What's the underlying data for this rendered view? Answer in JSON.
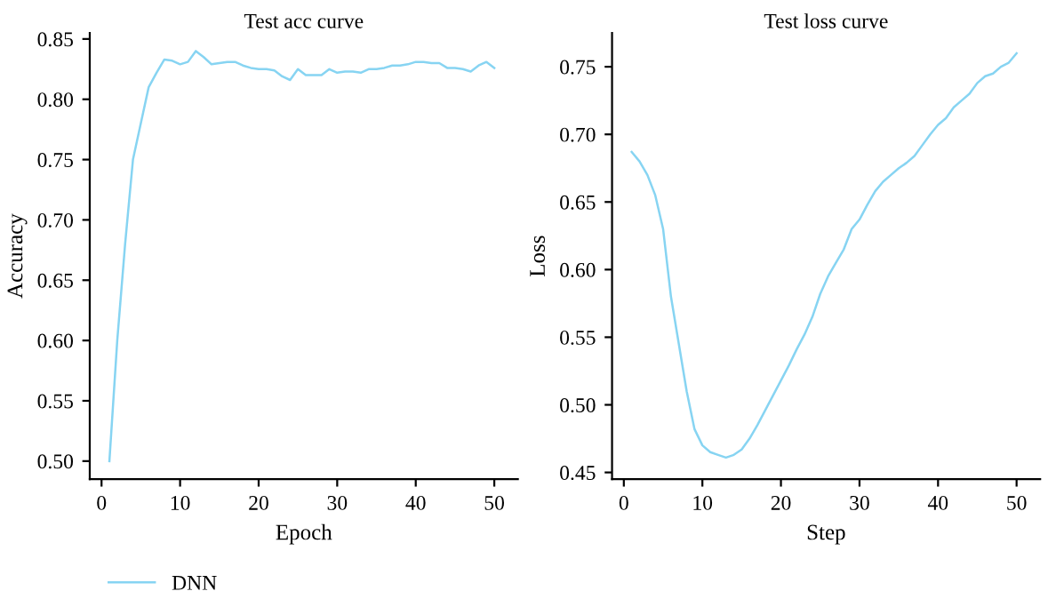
{
  "chart_data": [
    {
      "type": "line",
      "title": "Test acc curve",
      "xlabel": "Epoch",
      "ylabel": "Accuracy",
      "xlim": [
        -1.5,
        53
      ],
      "xticks": [
        0,
        10,
        20,
        30,
        40,
        50
      ],
      "ylim": [
        0.485,
        0.855
      ],
      "yticks": [
        {
          "value": 0.5,
          "label": "0.50"
        },
        0.55,
        {
          "value": 0.6,
          "label": "0.60"
        },
        0.65,
        {
          "value": 0.7,
          "label": "0.70"
        },
        0.75,
        {
          "value": 0.8,
          "label": "0.80"
        },
        0.85
      ],
      "legend": "bottom left",
      "grid": false,
      "x": [
        1,
        2,
        3,
        4,
        5,
        6,
        7,
        8,
        9,
        10,
        11,
        12,
        13,
        14,
        15,
        16,
        17,
        18,
        19,
        20,
        21,
        22,
        23,
        24,
        25,
        26,
        27,
        28,
        29,
        30,
        31,
        32,
        33,
        34,
        35,
        36,
        37,
        38,
        39,
        40,
        41,
        42,
        43,
        44,
        45,
        46,
        47,
        48,
        49,
        50
      ],
      "series": [
        {
          "name": "DNN",
          "color": "#87d4f2",
          "values": [
            0.5,
            0.6,
            0.68,
            0.75,
            0.78,
            0.81,
            0.822,
            0.833,
            0.832,
            0.829,
            0.831,
            0.84,
            0.835,
            0.829,
            0.83,
            0.831,
            0.831,
            0.828,
            0.826,
            0.825,
            0.825,
            0.824,
            0.819,
            0.816,
            0.825,
            0.82,
            0.82,
            0.82,
            0.825,
            0.822,
            0.823,
            0.823,
            0.822,
            0.825,
            0.825,
            0.826,
            0.828,
            0.828,
            0.829,
            0.831,
            0.831,
            0.83,
            0.83,
            0.826,
            0.826,
            0.825,
            0.823,
            0.828,
            0.831,
            0.826
          ]
        }
      ]
    },
    {
      "type": "line",
      "title": "Test loss curve",
      "xlabel": "Step",
      "ylabel": "Loss",
      "xlim": [
        -1.5,
        53
      ],
      "xticks": [
        0,
        10,
        20,
        30,
        40,
        50
      ],
      "ylim": [
        0.445,
        0.775
      ],
      "yticks": [
        0.45,
        {
          "value": 0.5,
          "label": "0.50"
        },
        0.55,
        {
          "value": 0.6,
          "label": "0.60"
        },
        0.65,
        {
          "value": 0.7,
          "label": "0.70"
        },
        0.75
      ],
      "grid": false,
      "x": [
        1,
        2,
        3,
        4,
        5,
        6,
        7,
        8,
        9,
        10,
        11,
        12,
        13,
        14,
        15,
        16,
        17,
        18,
        19,
        20,
        21,
        22,
        23,
        24,
        25,
        26,
        27,
        28,
        29,
        30,
        31,
        32,
        33,
        34,
        35,
        36,
        37,
        38,
        39,
        40,
        41,
        42,
        43,
        44,
        45,
        46,
        47,
        48,
        49,
        50
      ],
      "series": [
        {
          "color": "#87d4f2",
          "values": [
            0.687,
            0.68,
            0.67,
            0.655,
            0.63,
            0.58,
            0.545,
            0.51,
            0.482,
            0.47,
            0.465,
            0.463,
            0.461,
            0.463,
            0.467,
            0.475,
            0.485,
            0.496,
            0.507,
            0.518,
            0.529,
            0.541,
            0.552,
            0.565,
            0.582,
            0.595,
            0.605,
            0.615,
            0.63,
            0.637,
            0.648,
            0.658,
            0.665,
            0.67,
            0.675,
            0.679,
            0.684,
            0.692,
            0.7,
            0.707,
            0.712,
            0.72,
            0.725,
            0.73,
            0.738,
            0.743,
            0.745,
            0.75,
            0.753,
            0.76
          ]
        }
      ]
    }
  ]
}
